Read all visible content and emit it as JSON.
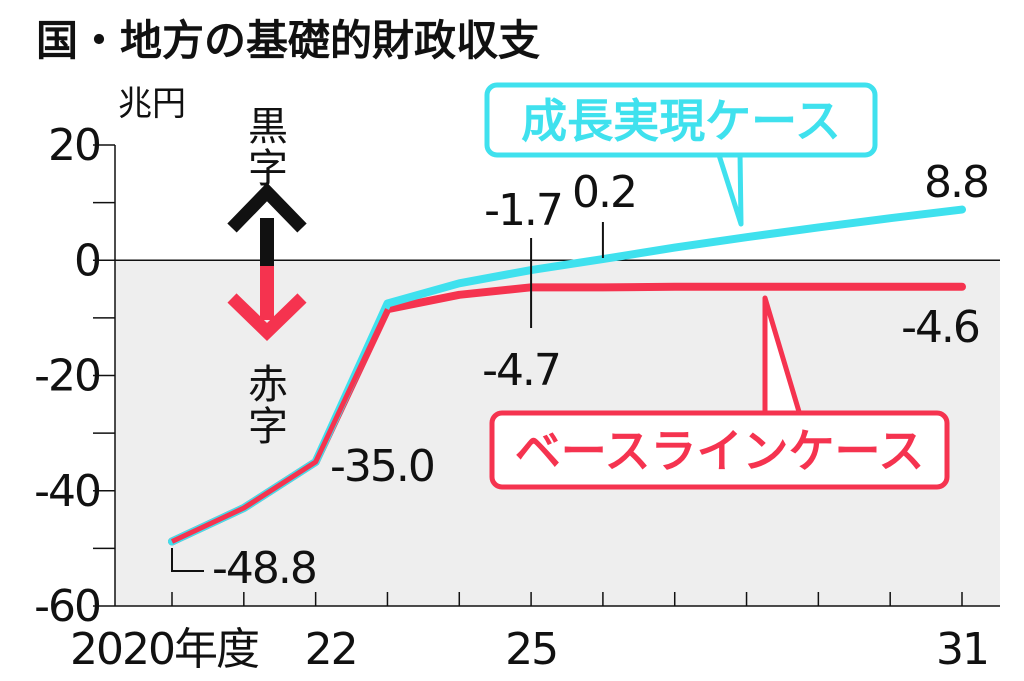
{
  "chart_data": {
    "type": "line",
    "title": "国・地方の基礎的財政収支",
    "unit_label": "兆円",
    "surplus_label": "黒字",
    "deficit_label": "赤字",
    "colors": {
      "growth": "#3fe1ee",
      "baseline": "#f5334f",
      "negative_zone": "#eeeeee",
      "up_arrow": "#111111",
      "down_arrow": "#f5334f"
    },
    "ylim": [
      -60,
      20
    ],
    "y_ticks": [
      20,
      0,
      -20,
      -40,
      -60
    ],
    "y_tick_labels": [
      "20",
      "0",
      "-20",
      "-40",
      "-60"
    ],
    "xlim": [
      2020,
      2031
    ],
    "x_tick_values": [
      2020,
      2022,
      2025,
      2031
    ],
    "x_tick_labels": [
      "2020年度",
      "22",
      "25",
      "31"
    ],
    "series": [
      {
        "name": "成長実現ケース",
        "x": [
          2020,
          2021,
          2022,
          2023,
          2024,
          2025,
          2026,
          2027,
          2028,
          2029,
          2030,
          2031
        ],
        "values": [
          -48.8,
          -43.0,
          -35.0,
          -7.5,
          -4.0,
          -1.7,
          0.2,
          2.2,
          4.0,
          5.7,
          7.3,
          8.8
        ]
      },
      {
        "name": "ベースラインケース",
        "x": [
          2020,
          2021,
          2022,
          2023,
          2024,
          2025,
          2026,
          2027,
          2028,
          2029,
          2030,
          2031
        ],
        "values": [
          -48.8,
          -43.0,
          -35.0,
          -8.5,
          -6.0,
          -4.7,
          -4.7,
          -4.6,
          -4.6,
          -4.6,
          -4.6,
          -4.6
        ]
      }
    ],
    "annotations": [
      {
        "text": "-48.8"
      },
      {
        "text": "-35.0"
      },
      {
        "text": "-1.7"
      },
      {
        "text": "0.2"
      },
      {
        "text": "-4.7"
      },
      {
        "text": "8.8"
      },
      {
        "text": "-4.6"
      }
    ]
  }
}
